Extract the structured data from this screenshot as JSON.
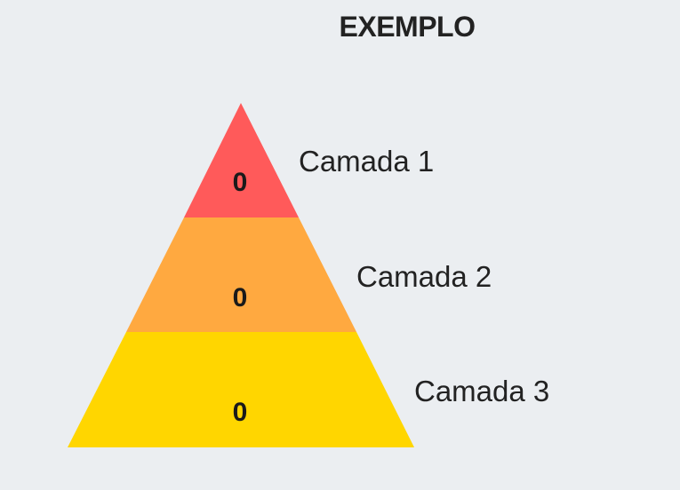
{
  "title": "EXEMPLO",
  "layers": [
    {
      "label": "Camada 1",
      "value": "0",
      "color": "#ff5a5a"
    },
    {
      "label": "Camada 2",
      "value": "0",
      "color": "#ffa940"
    },
    {
      "label": "Camada 3",
      "value": "0",
      "color": "#ffd600"
    }
  ]
}
